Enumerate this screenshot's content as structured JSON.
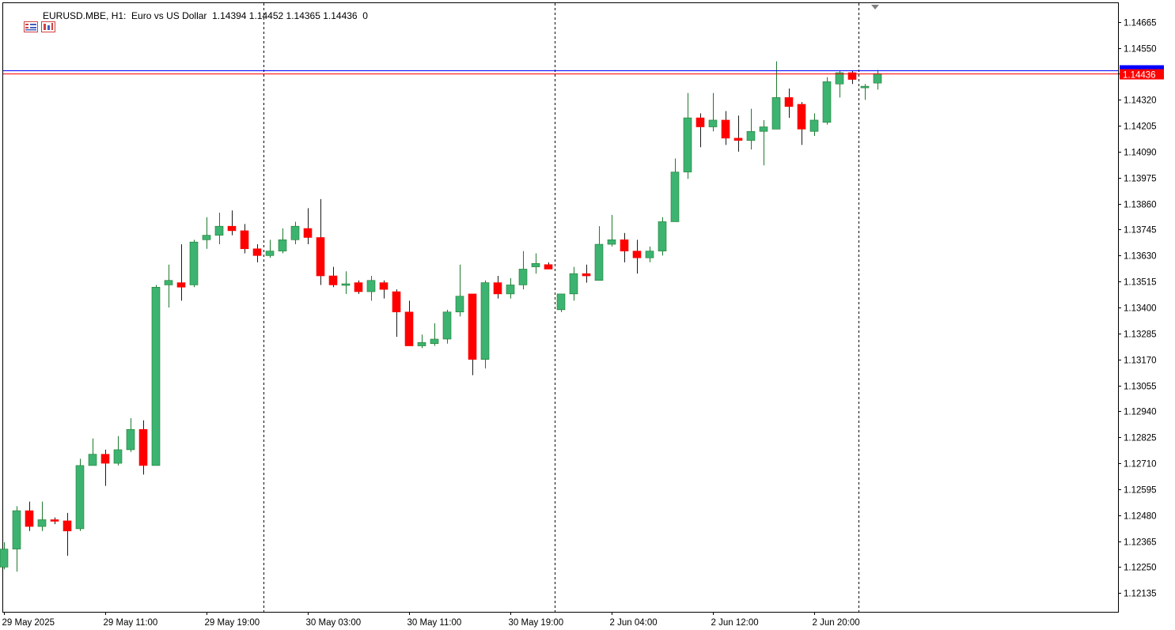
{
  "header": {
    "symbol": "EURUSD.MBE",
    "timeframe": "H1:",
    "description": "Euro vs US Dollar",
    "ohlc": "1.14394 1.14452 1.14365 1.14436",
    "volume": "0",
    "icons": [
      "one-click-trading-icon",
      "depth-of-market-icon"
    ]
  },
  "colors": {
    "bull": "#3cb371",
    "bear": "#ff0000",
    "wick": "#1e7a2e",
    "bid_line": "#ff0000",
    "ask_line": "#0000ff",
    "grid_sep": "#000000"
  },
  "chart_data": {
    "type": "candlestick",
    "symbol": "EURUSD.MBE",
    "timeframe": "H1",
    "ylim": [
      1.12052,
      1.14748
    ],
    "y_ticks": [
      "1.14665",
      "1.14550",
      "1.14435",
      "1.14320",
      "1.14205",
      "1.14090",
      "1.13975",
      "1.13860",
      "1.13745",
      "1.13630",
      "1.13515",
      "1.13400",
      "1.13285",
      "1.13170",
      "1.13055",
      "1.12940",
      "1.12825",
      "1.12710",
      "1.12595",
      "1.12480",
      "1.12365",
      "1.12250",
      "1.12135"
    ],
    "x_labels": [
      {
        "index": 0,
        "label": "29 May 2025"
      },
      {
        "index": 8,
        "label": "29 May 11:00"
      },
      {
        "index": 16,
        "label": "29 May 19:00"
      },
      {
        "index": 24,
        "label": "30 May 03:00"
      },
      {
        "index": 32,
        "label": "30 May 11:00"
      },
      {
        "index": 40,
        "label": "30 May 19:00"
      },
      {
        "index": 48,
        "label": "2 Jun 04:00"
      },
      {
        "index": 56,
        "label": "2 Jun 12:00"
      },
      {
        "index": 64,
        "label": "2 Jun 20:00"
      }
    ],
    "day_separators_index": [
      20.5,
      43.5,
      67.5
    ],
    "bid": 1.14436,
    "bid_label": "1.14436",
    "ask": 1.14452,
    "candles": [
      {
        "o": 1.1225,
        "h": 1.1236,
        "l": 1.1224,
        "c": 1.1233
      },
      {
        "o": 1.1233,
        "h": 1.1252,
        "l": 1.1223,
        "c": 1.125
      },
      {
        "o": 1.125,
        "h": 1.1254,
        "l": 1.1241,
        "c": 1.1243
      },
      {
        "o": 1.1243,
        "h": 1.1254,
        "l": 1.1241,
        "c": 1.1246
      },
      {
        "o": 1.1246,
        "h": 1.1247,
        "l": 1.1244,
        "c": 1.12455
      },
      {
        "o": 1.12455,
        "h": 1.1249,
        "l": 1.123,
        "c": 1.1241
      },
      {
        "o": 1.1242,
        "h": 1.1273,
        "l": 1.1241,
        "c": 1.127
      },
      {
        "o": 1.127,
        "h": 1.1282,
        "l": 1.127,
        "c": 1.1275
      },
      {
        "o": 1.1275,
        "h": 1.1277,
        "l": 1.1261,
        "c": 1.1271
      },
      {
        "o": 1.1271,
        "h": 1.1283,
        "l": 1.127,
        "c": 1.1277
      },
      {
        "o": 1.1277,
        "h": 1.1291,
        "l": 1.1276,
        "c": 1.1286
      },
      {
        "o": 1.1286,
        "h": 1.129,
        "l": 1.1266,
        "c": 1.127
      },
      {
        "o": 1.127,
        "h": 1.135,
        "l": 1.127,
        "c": 1.1349
      },
      {
        "o": 1.135,
        "h": 1.1359,
        "l": 1.134,
        "c": 1.1352
      },
      {
        "o": 1.1351,
        "h": 1.1368,
        "l": 1.1343,
        "c": 1.1349
      },
      {
        "o": 1.135,
        "h": 1.137,
        "l": 1.1349,
        "c": 1.1369
      },
      {
        "o": 1.137,
        "h": 1.138,
        "l": 1.1366,
        "c": 1.1372
      },
      {
        "o": 1.1372,
        "h": 1.1382,
        "l": 1.1368,
        "c": 1.1376
      },
      {
        "o": 1.1376,
        "h": 1.1383,
        "l": 1.1372,
        "c": 1.1374
      },
      {
        "o": 1.1374,
        "h": 1.1377,
        "l": 1.1364,
        "c": 1.1366
      },
      {
        "o": 1.1366,
        "h": 1.1368,
        "l": 1.136,
        "c": 1.1363
      },
      {
        "o": 1.1363,
        "h": 1.137,
        "l": 1.1362,
        "c": 1.1365
      },
      {
        "o": 1.1365,
        "h": 1.1375,
        "l": 1.1364,
        "c": 1.137
      },
      {
        "o": 1.137,
        "h": 1.1378,
        "l": 1.1368,
        "c": 1.1376
      },
      {
        "o": 1.1375,
        "h": 1.1384,
        "l": 1.1368,
        "c": 1.1371
      },
      {
        "o": 1.1371,
        "h": 1.1388,
        "l": 1.135,
        "c": 1.1354
      },
      {
        "o": 1.1354,
        "h": 1.1358,
        "l": 1.1349,
        "c": 1.135
      },
      {
        "o": 1.135,
        "h": 1.1356,
        "l": 1.1346,
        "c": 1.13505
      },
      {
        "o": 1.1351,
        "h": 1.1352,
        "l": 1.1346,
        "c": 1.1347
      },
      {
        "o": 1.1347,
        "h": 1.1354,
        "l": 1.1343,
        "c": 1.1352
      },
      {
        "o": 1.1351,
        "h": 1.1352,
        "l": 1.1344,
        "c": 1.1348
      },
      {
        "o": 1.1347,
        "h": 1.1348,
        "l": 1.1327,
        "c": 1.1338
      },
      {
        "o": 1.1338,
        "h": 1.1343,
        "l": 1.1323,
        "c": 1.1323
      },
      {
        "o": 1.1323,
        "h": 1.1328,
        "l": 1.1322,
        "c": 1.13245
      },
      {
        "o": 1.1324,
        "h": 1.1333,
        "l": 1.1323,
        "c": 1.1326
      },
      {
        "o": 1.1326,
        "h": 1.1339,
        "l": 1.1324,
        "c": 1.1338
      },
      {
        "o": 1.1338,
        "h": 1.1359,
        "l": 1.1336,
        "c": 1.1345
      },
      {
        "o": 1.1346,
        "h": 1.1346,
        "l": 1.131,
        "c": 1.1317
      },
      {
        "o": 1.1317,
        "h": 1.1352,
        "l": 1.1313,
        "c": 1.1351
      },
      {
        "o": 1.1351,
        "h": 1.1354,
        "l": 1.1344,
        "c": 1.1346
      },
      {
        "o": 1.1346,
        "h": 1.1353,
        "l": 1.1344,
        "c": 1.135
      },
      {
        "o": 1.135,
        "h": 1.1365,
        "l": 1.1348,
        "c": 1.1357
      },
      {
        "o": 1.1358,
        "h": 1.1364,
        "l": 1.1355,
        "c": 1.13595
      },
      {
        "o": 1.1359,
        "h": 1.136,
        "l": 1.1357,
        "c": 1.1357
      },
      {
        "o": 1.1339,
        "h": 1.1346,
        "l": 1.1338,
        "c": 1.1346
      },
      {
        "o": 1.1346,
        "h": 1.1358,
        "l": 1.1343,
        "c": 1.1355
      },
      {
        "o": 1.1355,
        "h": 1.1359,
        "l": 1.1351,
        "c": 1.1354
      },
      {
        "o": 1.1352,
        "h": 1.1376,
        "l": 1.1352,
        "c": 1.1368
      },
      {
        "o": 1.1368,
        "h": 1.1381,
        "l": 1.1367,
        "c": 1.137
      },
      {
        "o": 1.137,
        "h": 1.1373,
        "l": 1.136,
        "c": 1.1365
      },
      {
        "o": 1.1365,
        "h": 1.137,
        "l": 1.1355,
        "c": 1.1362
      },
      {
        "o": 1.1362,
        "h": 1.1367,
        "l": 1.136,
        "c": 1.1365
      },
      {
        "o": 1.1365,
        "h": 1.138,
        "l": 1.1363,
        "c": 1.1378
      },
      {
        "o": 1.1378,
        "h": 1.1406,
        "l": 1.1378,
        "c": 1.14
      },
      {
        "o": 1.14,
        "h": 1.1435,
        "l": 1.1397,
        "c": 1.1424
      },
      {
        "o": 1.1424,
        "h": 1.1426,
        "l": 1.1411,
        "c": 1.142
      },
      {
        "o": 1.142,
        "h": 1.1435,
        "l": 1.1418,
        "c": 1.1423
      },
      {
        "o": 1.1423,
        "h": 1.1427,
        "l": 1.1412,
        "c": 1.1415
      },
      {
        "o": 1.1415,
        "h": 1.1425,
        "l": 1.1409,
        "c": 1.1414
      },
      {
        "o": 1.1414,
        "h": 1.1428,
        "l": 1.141,
        "c": 1.1418
      },
      {
        "o": 1.1418,
        "h": 1.1423,
        "l": 1.1403,
        "c": 1.142
      },
      {
        "o": 1.1419,
        "h": 1.1449,
        "l": 1.1419,
        "c": 1.1433
      },
      {
        "o": 1.1433,
        "h": 1.1437,
        "l": 1.1424,
        "c": 1.1429
      },
      {
        "o": 1.143,
        "h": 1.1431,
        "l": 1.1412,
        "c": 1.1419
      },
      {
        "o": 1.1418,
        "h": 1.1426,
        "l": 1.1416,
        "c": 1.1423
      },
      {
        "o": 1.1422,
        "h": 1.1442,
        "l": 1.1421,
        "c": 1.144
      },
      {
        "o": 1.1439,
        "h": 1.1445,
        "l": 1.1433,
        "c": 1.1444
      },
      {
        "o": 1.1444,
        "h": 1.1445,
        "l": 1.1439,
        "c": 1.1441
      },
      {
        "o": 1.1438,
        "h": 1.1439,
        "l": 1.1432,
        "c": 1.1438
      },
      {
        "o": 1.14394,
        "h": 1.14452,
        "l": 1.14365,
        "c": 1.14436
      }
    ]
  }
}
